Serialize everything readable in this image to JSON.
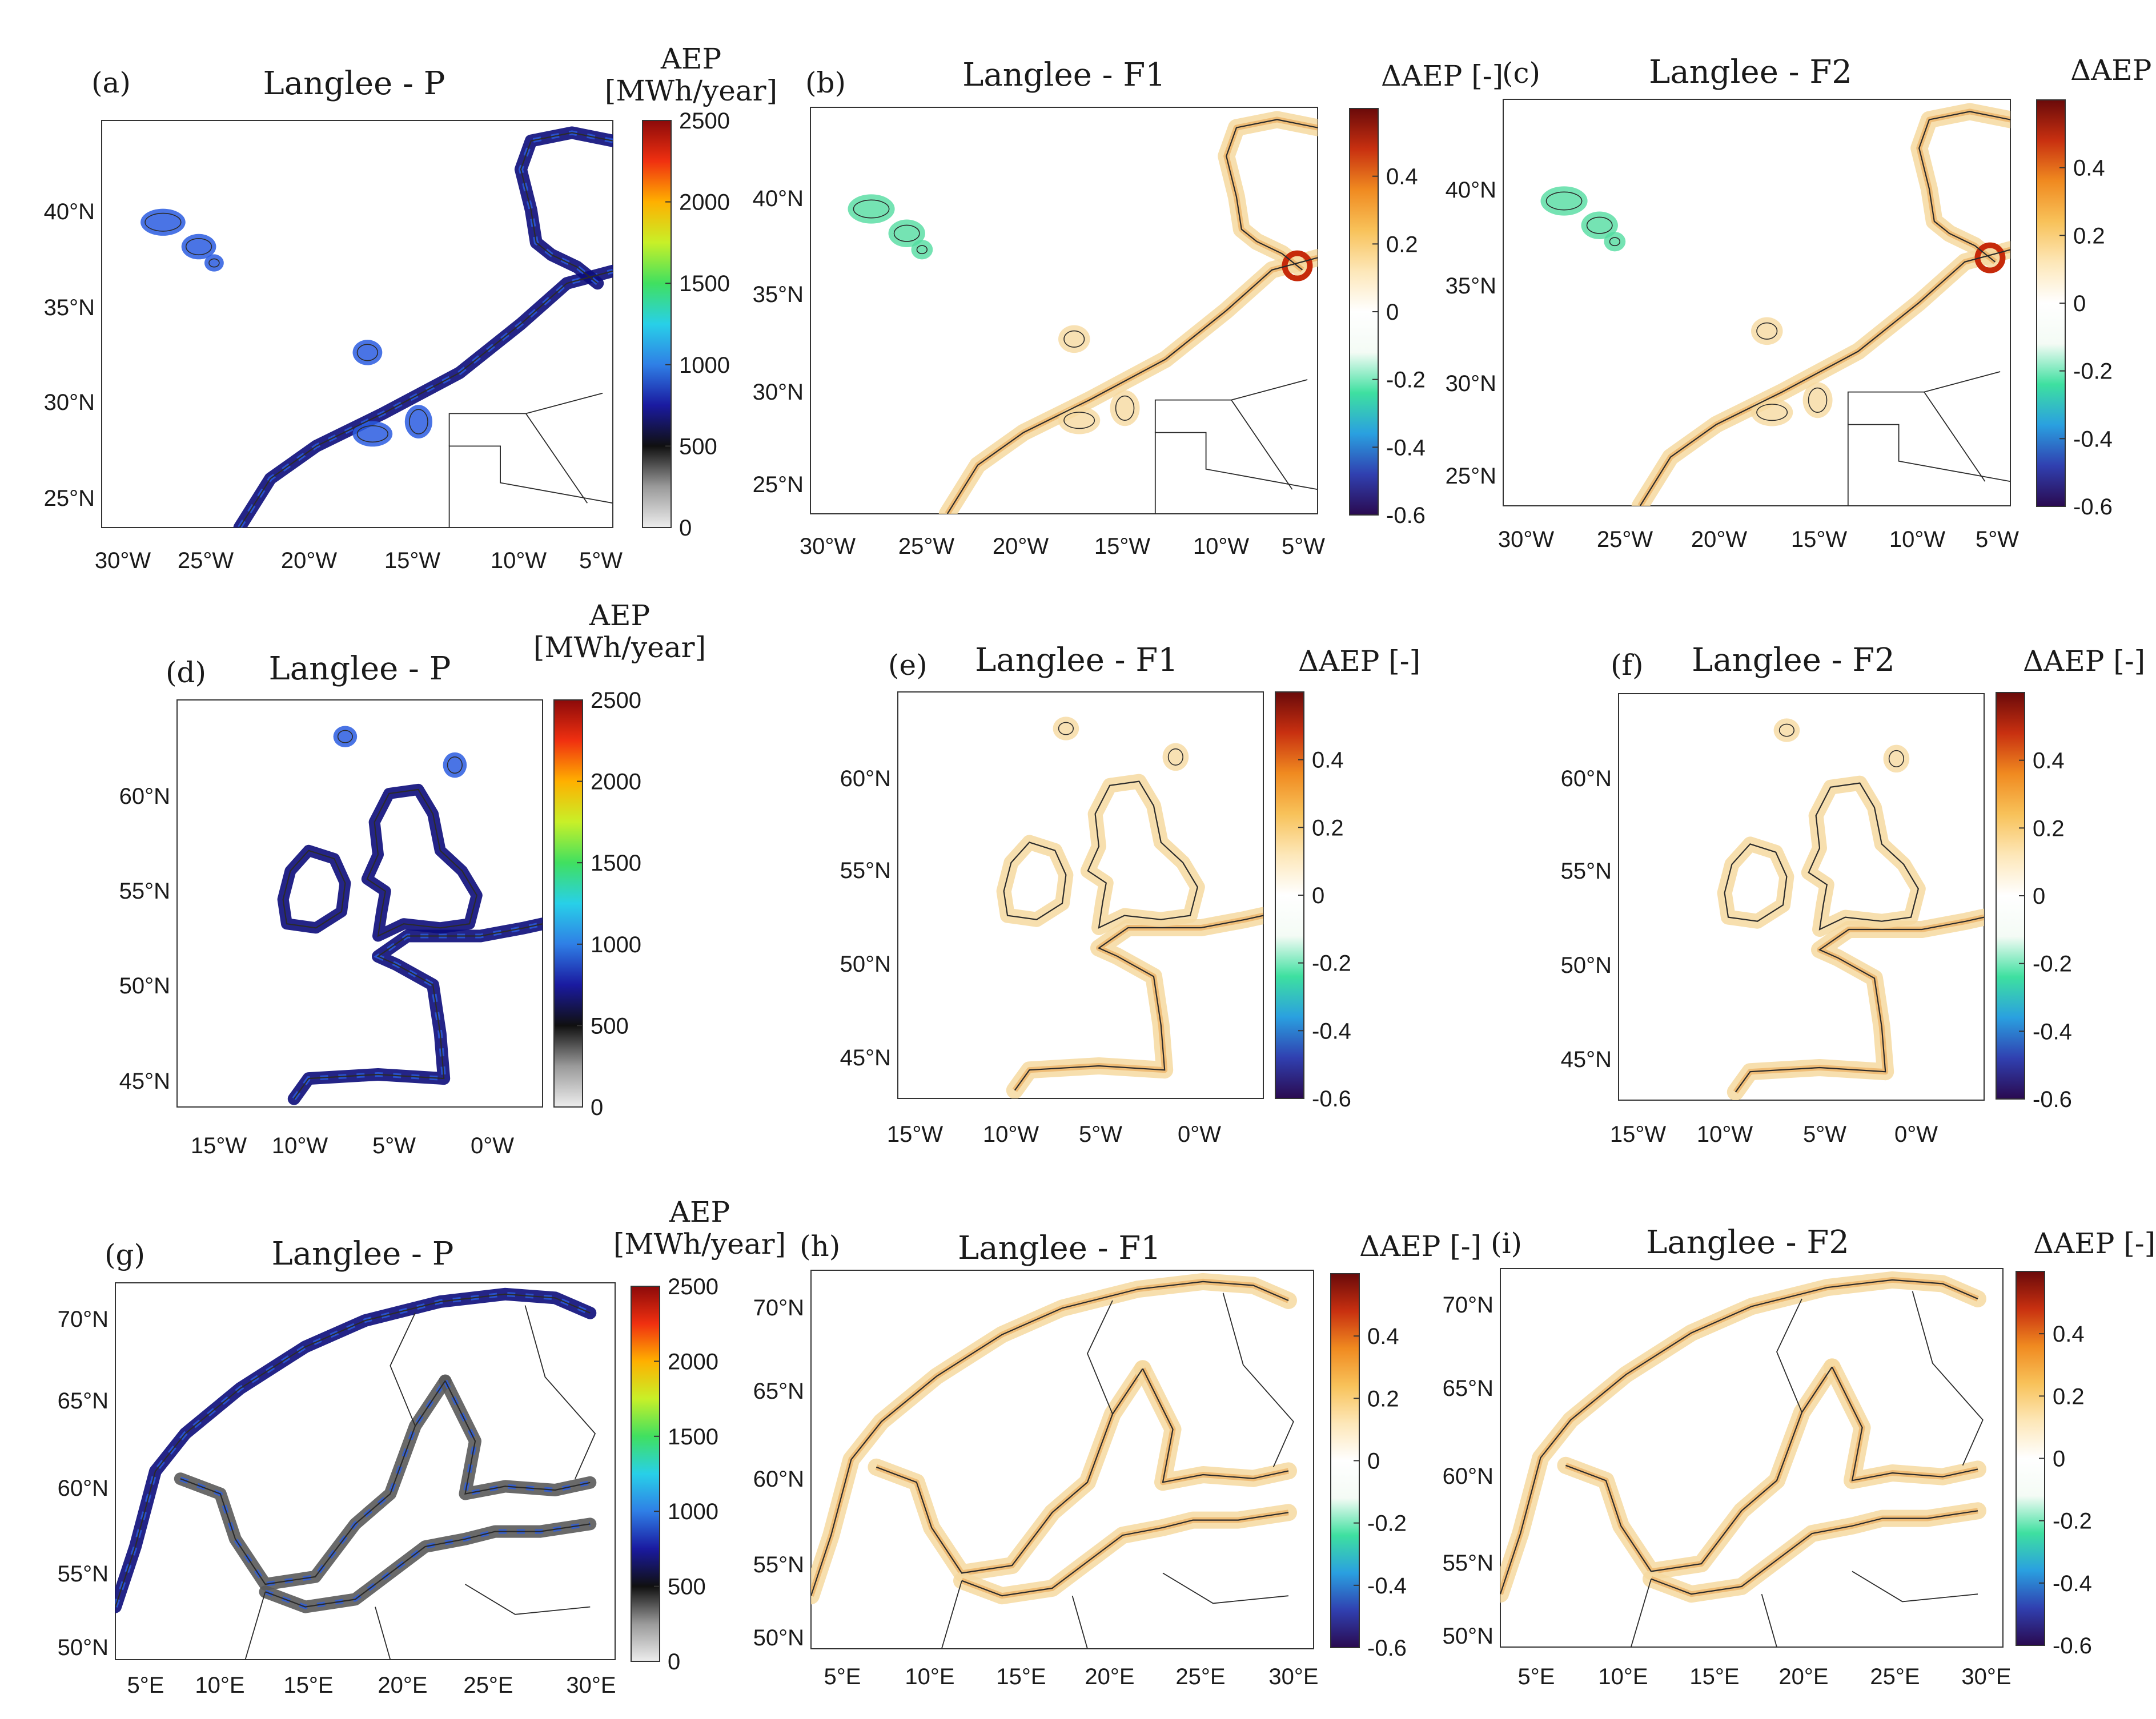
{
  "figure": {
    "panels": [
      {
        "id": "a",
        "letter": "(a)",
        "title": "Langlee - P",
        "kind": "abs",
        "cb_title": [
          "AEP",
          "[MWh/year]"
        ],
        "cb_ticks": [
          "2500",
          "2000",
          "1500",
          "1000",
          "500",
          "0"
        ],
        "lat_labels": [
          "40°N",
          "35°N",
          "30°N",
          "25°N"
        ],
        "lon_labels": [
          "30°W",
          "25°W",
          "20°W",
          "15°W",
          "10°W",
          "5°W"
        ]
      },
      {
        "id": "b",
        "letter": "(b)",
        "title": "Langlee - F1",
        "kind": "delta",
        "cb_title": [
          "ΔAEP [-]"
        ],
        "cb_ticks": [
          "0.4",
          "0.2",
          "0",
          "-0.2",
          "-0.4",
          "-0.6"
        ],
        "lat_labels": [
          "40°N",
          "35°N",
          "30°N",
          "25°N"
        ],
        "lon_labels": [
          "30°W",
          "25°W",
          "20°W",
          "15°W",
          "10°W",
          "5°W"
        ]
      },
      {
        "id": "c",
        "letter": "(c)",
        "title": "Langlee - F2",
        "kind": "delta",
        "cb_title": [
          "ΔAEP [-]"
        ],
        "cb_ticks": [
          "0.4",
          "0.2",
          "0",
          "-0.2",
          "-0.4",
          "-0.6"
        ],
        "lat_labels": [
          "40°N",
          "35°N",
          "30°N",
          "25°N"
        ],
        "lon_labels": [
          "30°W",
          "25°W",
          "20°W",
          "15°W",
          "10°W",
          "5°W"
        ]
      },
      {
        "id": "d",
        "letter": "(d)",
        "title": "Langlee - P",
        "kind": "abs",
        "cb_title": [
          "AEP",
          "[MWh/year]"
        ],
        "cb_ticks": [
          "2500",
          "2000",
          "1500",
          "1000",
          "500",
          "0"
        ],
        "lat_labels": [
          "60°N",
          "55°N",
          "50°N",
          "45°N"
        ],
        "lon_labels": [
          "15°W",
          "10°W",
          "5°W",
          "0°W"
        ]
      },
      {
        "id": "e",
        "letter": "(e)",
        "title": "Langlee - F1",
        "kind": "delta",
        "cb_title": [
          "ΔAEP [-]"
        ],
        "cb_ticks": [
          "0.4",
          "0.2",
          "0",
          "-0.2",
          "-0.4",
          "-0.6"
        ],
        "lat_labels": [
          "60°N",
          "55°N",
          "50°N",
          "45°N"
        ],
        "lon_labels": [
          "15°W",
          "10°W",
          "5°W",
          "0°W"
        ]
      },
      {
        "id": "f",
        "letter": "(f)",
        "title": "Langlee - F2",
        "kind": "delta",
        "cb_title": [
          "ΔAEP [-]"
        ],
        "cb_ticks": [
          "0.4",
          "0.2",
          "0",
          "-0.2",
          "-0.4",
          "-0.6"
        ],
        "lat_labels": [
          "60°N",
          "55°N",
          "50°N",
          "45°N"
        ],
        "lon_labels": [
          "15°W",
          "10°W",
          "5°W",
          "0°W"
        ]
      },
      {
        "id": "g",
        "letter": "(g)",
        "title": "Langlee - P",
        "kind": "abs",
        "cb_title": [
          "AEP",
          "[MWh/year]"
        ],
        "cb_ticks": [
          "2500",
          "2000",
          "1500",
          "1000",
          "500",
          "0"
        ],
        "lat_labels": [
          "70°N",
          "65°N",
          "60°N",
          "55°N",
          "50°N"
        ],
        "lon_labels": [
          "5°E",
          "10°E",
          "15°E",
          "20°E",
          "25°E",
          "30°E"
        ]
      },
      {
        "id": "h",
        "letter": "(h)",
        "title": "Langlee - F1",
        "kind": "delta",
        "cb_title": [
          "ΔAEP [-]"
        ],
        "cb_ticks": [
          "0.4",
          "0.2",
          "0",
          "-0.2",
          "-0.4",
          "-0.6"
        ],
        "lat_labels": [
          "70°N",
          "65°N",
          "60°N",
          "55°N",
          "50°N"
        ],
        "lon_labels": [
          "5°E",
          "10°E",
          "15°E",
          "20°E",
          "25°E",
          "30°E"
        ]
      },
      {
        "id": "i",
        "letter": "(i)",
        "title": "Langlee - F2",
        "kind": "delta",
        "cb_title": [
          "ΔAEP [-]"
        ],
        "cb_ticks": [
          "0.4",
          "0.2",
          "0",
          "-0.2",
          "-0.4",
          "-0.6"
        ],
        "lat_labels": [
          "70°N",
          "65°N",
          "60°N",
          "55°N",
          "50°N"
        ],
        "lon_labels": [
          "5°E",
          "10°E",
          "15°E",
          "20°E",
          "25°E",
          "30°E"
        ]
      }
    ]
  },
  "colors": {
    "coast_line": "#2b2b2b",
    "abs_scale": [
      "#ededed",
      "#9a9a9a",
      "#101010",
      "#1a1aa0",
      "#2f7fe6",
      "#28d0e8",
      "#40e060",
      "#c8f028",
      "#ffb000",
      "#f03010",
      "#8c0a0a"
    ],
    "delta_scale": [
      "#2a0a50",
      "#3040b0",
      "#2aa0e0",
      "#3ee0a0",
      "#f4fbf5",
      "#ffffff",
      "#fde7b8",
      "#f8c25a",
      "#f08a20",
      "#c83010",
      "#6a0a0a"
    ],
    "abs_coast_dark": "#0c0c7a",
    "abs_coast_blue": "#2a5ce0",
    "abs_coast_gray": "#5a5a5a",
    "delta_halo": "#f6d9a0",
    "delta_core": "#e9a04a",
    "delta_hot": "#c62a0a",
    "delta_green": "#52dca0"
  }
}
